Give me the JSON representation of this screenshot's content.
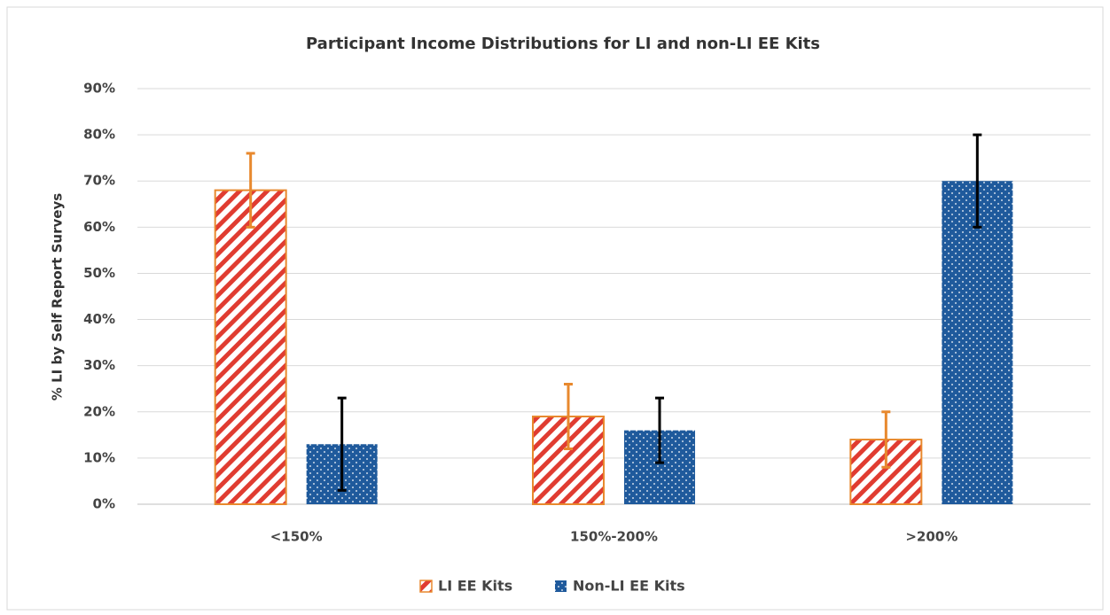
{
  "chart_data": {
    "type": "bar",
    "title": "Participant Income Distributions for LI and non-LI EE Kits",
    "y_label": "% LI by Self Report Surveys",
    "categories": [
      "<150%",
      "150%-200%",
      ">200%"
    ],
    "series": [
      {
        "name": "LI EE Kits",
        "color": "#e03c31",
        "border_color": "#e8892e",
        "error_color": "#e8892e",
        "values": [
          68,
          19,
          14
        ],
        "errors": [
          8,
          7,
          6
        ]
      },
      {
        "name": "Non-LI EE Kits",
        "color": "#1f5a9c",
        "error_color": "#000000",
        "values": [
          13,
          16,
          70
        ],
        "errors": [
          10,
          7,
          10
        ]
      }
    ],
    "ylim": [
      0,
      90
    ],
    "yticks": [
      {
        "value": 0,
        "label": "0%"
      },
      {
        "value": 10,
        "label": "10%"
      },
      {
        "value": 20,
        "label": "20%"
      },
      {
        "value": 30,
        "label": "30%"
      },
      {
        "value": 40,
        "label": "40%"
      },
      {
        "value": 50,
        "label": "50%"
      },
      {
        "value": 60,
        "label": "60%"
      },
      {
        "value": 70,
        "label": "70%"
      },
      {
        "value": 80,
        "label": "80%"
      },
      {
        "value": 90,
        "label": "90%"
      }
    ],
    "grid": true,
    "legend": "bottom"
  }
}
